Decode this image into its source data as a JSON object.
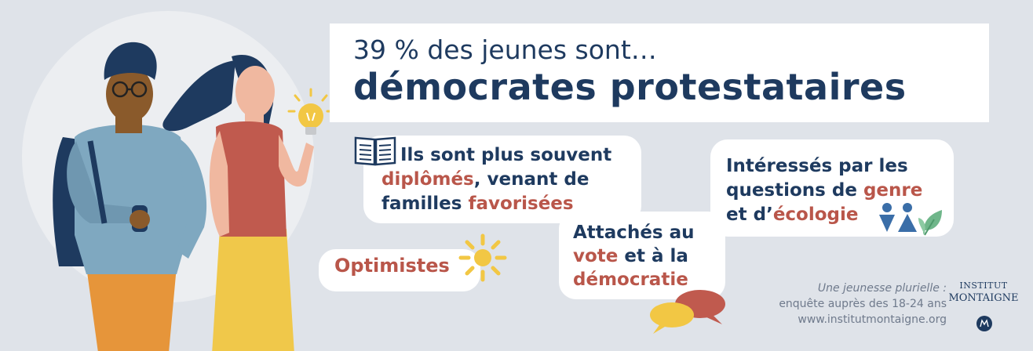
{
  "title": {
    "line1": "39 % des jeunes sont…",
    "line2": "démocrates protestataires"
  },
  "bubbles": {
    "diplomes": {
      "l1": "Ils sont plus souvent",
      "l2_hl": "diplômés",
      "l2_rest": ", venant de",
      "l3_start": "familles ",
      "l3_hl": "favorisées"
    },
    "genre": {
      "l1": "Intéressés par les",
      "l2_start": "questions de ",
      "l2_hl": "genre",
      "l3_start": "et d’",
      "l3_hl": "écologie"
    },
    "vote": {
      "l1": "Attachés au",
      "l2_hl": "vote",
      "l2_rest": " et à la",
      "l3_hl": "démocratie"
    },
    "optimistes": "Optimistes"
  },
  "caption": {
    "line1": "Une jeunesse plurielle :",
    "line2": "enquête auprès des 18-24 ans",
    "line3": "www.institutmontaigne.org"
  },
  "logo": {
    "line1": "INSTITUT",
    "line2": "MONTAIGNE"
  },
  "colors": {
    "navy": "#1e3a5f",
    "accent": "#b9564a",
    "yellow": "#f2c744",
    "background": "#dfe3e9"
  },
  "icons": [
    "book-icon",
    "sun-icon",
    "gender-icon",
    "leaf-icon",
    "speech-bubbles-icon",
    "lightbulb-icon",
    "logo-emblem-icon"
  ]
}
